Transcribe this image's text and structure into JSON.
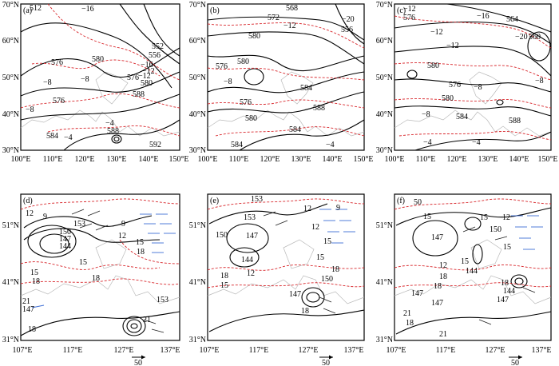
{
  "panels": [
    {
      "label": "(a)",
      "yticks": [
        "70°N",
        "60°N",
        "50°N",
        "40°N",
        "30°N"
      ],
      "xticks": [
        "100°E",
        "110°E",
        "120°E",
        "130°E",
        "140°E",
        "150°E"
      ],
      "contours": [
        "512",
        "−16",
        "576",
        "580",
        "−12",
        "552",
        "556",
        "−16",
        "576",
        "580",
        "−8",
        "−8",
        "576",
        "−8",
        "588",
        "−4",
        "588",
        "584",
        "−4",
        "592",
        "−12"
      ]
    },
    {
      "label": "(b)",
      "yticks": [
        "70°N",
        "60°N",
        "50°N",
        "40°N",
        "30°N"
      ],
      "xticks": [
        "100°E",
        "110°E",
        "120°E",
        "130°E",
        "140°E",
        "150°E"
      ],
      "contours": [
        "568",
        "572",
        "−20",
        "556",
        "−12",
        "580",
        "576",
        "580",
        "−8",
        "584",
        "588",
        "576",
        "580",
        "584",
        "584",
        "−4"
      ]
    },
    {
      "label": "(c)",
      "yticks": [
        "70°N",
        "60°N",
        "50°N",
        "40°N",
        "30°N"
      ],
      "xticks": [
        "100°E",
        "110°E",
        "120°E",
        "130°E",
        "140°E",
        "150°E"
      ],
      "contours": [
        "−12",
        "576",
        "−16",
        "564",
        "−12",
        "−20",
        "560",
        "−12",
        "580",
        "576",
        "−8",
        "580",
        "−8",
        "584",
        "−4",
        "588",
        "−8",
        "−4"
      ]
    },
    {
      "label": "(d)",
      "yticks": [
        "51°N",
        "41°N",
        "31°N"
      ],
      "xticks": [
        "107°E",
        "117°E",
        "127°E",
        "137°E"
      ],
      "contours": [
        "12",
        "9",
        "153",
        "150",
        "147",
        "144",
        "9",
        "12",
        "15",
        "18",
        "15",
        "18",
        "15",
        "18",
        "21",
        "147",
        "153",
        "21",
        "18"
      ]
    },
    {
      "label": "(e)",
      "yticks": [
        "51°N",
        "41°N",
        "31°N"
      ],
      "xticks": [
        "107°E",
        "117°E",
        "127°E",
        "137°E"
      ],
      "contours": [
        "153",
        "12",
        "153",
        "9",
        "147",
        "150",
        "12",
        "144",
        "15",
        "12",
        "18",
        "15",
        "150",
        "18",
        "147",
        "15",
        "18"
      ]
    },
    {
      "label": "(f)",
      "yticks": [
        "51°N",
        "41°N",
        "31°N"
      ],
      "xticks": [
        "107°E",
        "117°E",
        "127°E",
        "137°E"
      ],
      "contours": [
        "50",
        "15",
        "15",
        "12",
        "147",
        "150",
        "15",
        "12",
        "15",
        "18",
        "144",
        "18",
        "147",
        "18",
        "144",
        "147",
        "21",
        "18",
        "21",
        "147"
      ]
    }
  ],
  "vector_scale": "50",
  "colors": {
    "geopotential": "#000000",
    "temperature": "#d8262b",
    "wind_blue": "#3f6fd6",
    "coast": "#b9b9b9"
  }
}
